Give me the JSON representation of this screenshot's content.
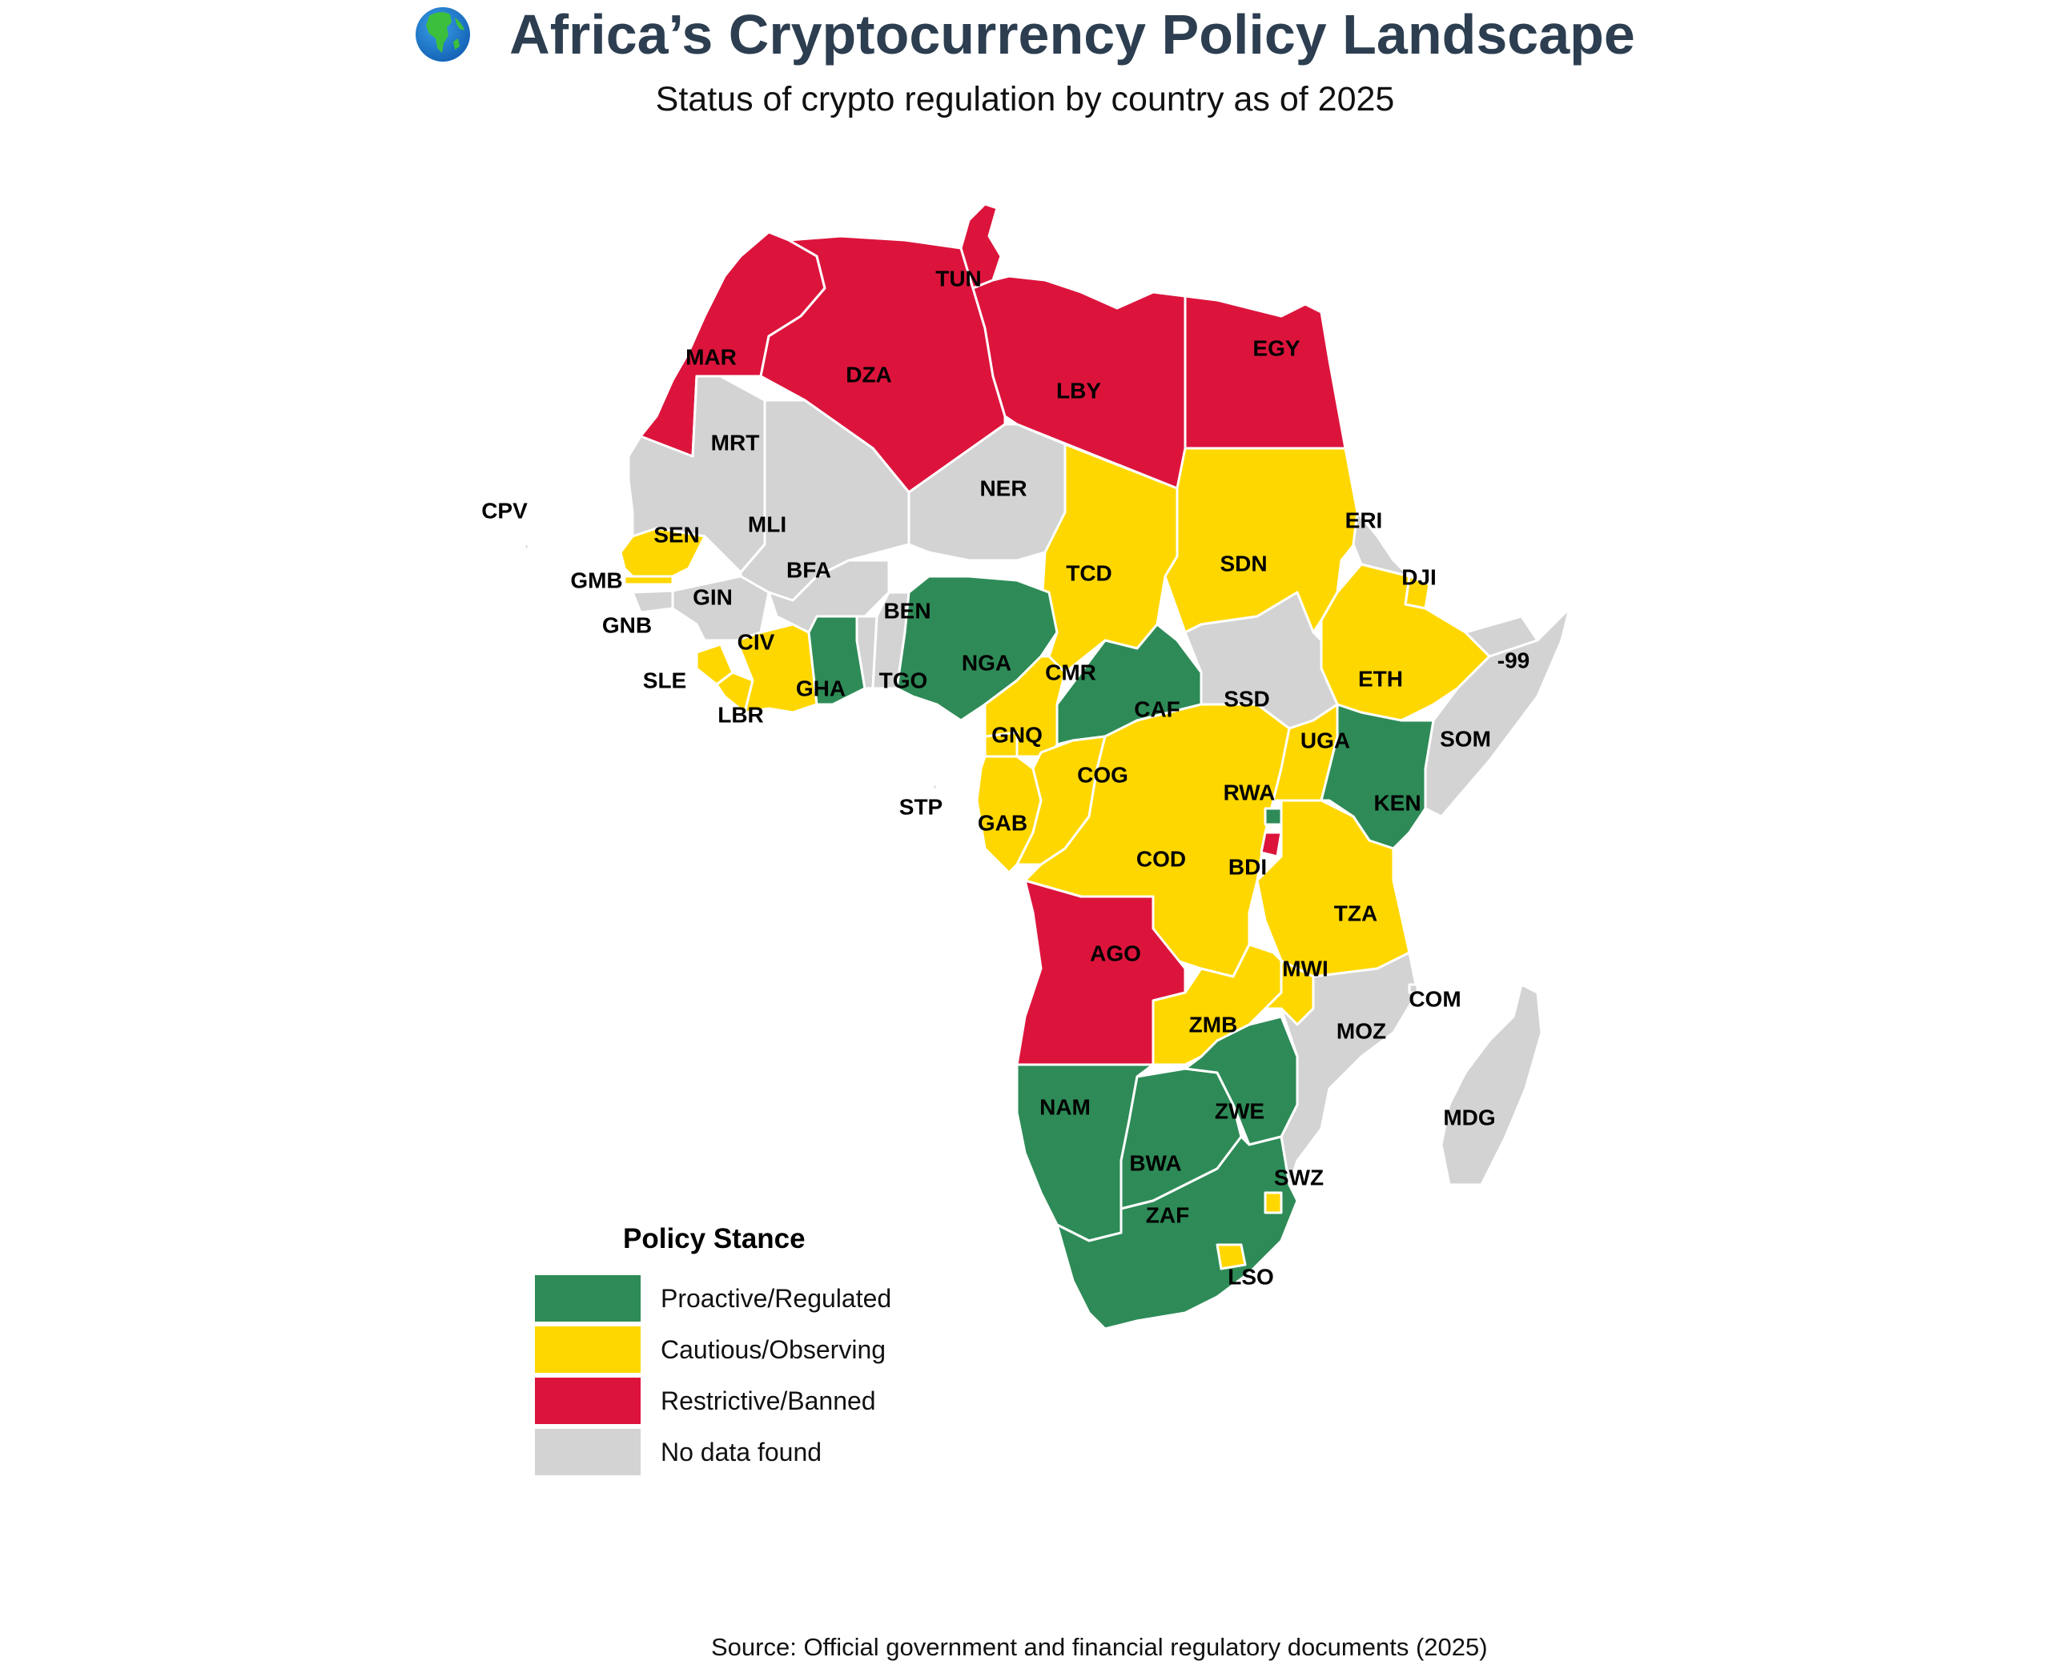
{
  "header": {
    "title": "Africa’s Cryptocurrency Policy Landscape",
    "subtitle": "Status of crypto regulation by country as of 2025",
    "icon": "globe-africa-icon"
  },
  "legend": {
    "title": "Policy Stance",
    "items": [
      {
        "key": "proactive",
        "label": "Proactive/Regulated",
        "color": "#2e8b57"
      },
      {
        "key": "cautious",
        "label": "Cautious/Observing",
        "color": "#ffd700"
      },
      {
        "key": "restrictive",
        "label": "Restrictive/Banned",
        "color": "#dc143c"
      },
      {
        "key": "nodata",
        "label": "No data found",
        "color": "#d3d3d3"
      }
    ]
  },
  "source": "Source: Official government and financial regulatory documents (2025)",
  "countries": [
    {
      "code": "MAR",
      "stance": "restrictive"
    },
    {
      "code": "DZA",
      "stance": "restrictive"
    },
    {
      "code": "TUN",
      "stance": "restrictive"
    },
    {
      "code": "LBY",
      "stance": "restrictive"
    },
    {
      "code": "EGY",
      "stance": "restrictive"
    },
    {
      "code": "MRT",
      "stance": "nodata"
    },
    {
      "code": "MLI",
      "stance": "nodata"
    },
    {
      "code": "NER",
      "stance": "nodata"
    },
    {
      "code": "TCD",
      "stance": "cautious"
    },
    {
      "code": "SDN",
      "stance": "cautious"
    },
    {
      "code": "ERI",
      "stance": "nodata"
    },
    {
      "code": "DJI",
      "stance": "cautious"
    },
    {
      "code": "ETH",
      "stance": "cautious"
    },
    {
      "code": "-99",
      "stance": "nodata"
    },
    {
      "code": "SOM",
      "stance": "nodata"
    },
    {
      "code": "CPV",
      "stance": "nodata"
    },
    {
      "code": "SEN",
      "stance": "cautious"
    },
    {
      "code": "GMB",
      "stance": "cautious"
    },
    {
      "code": "GNB",
      "stance": "nodata"
    },
    {
      "code": "GIN",
      "stance": "nodata"
    },
    {
      "code": "SLE",
      "stance": "cautious"
    },
    {
      "code": "LBR",
      "stance": "cautious"
    },
    {
      "code": "CIV",
      "stance": "cautious"
    },
    {
      "code": "BFA",
      "stance": "nodata"
    },
    {
      "code": "GHA",
      "stance": "proactive"
    },
    {
      "code": "TGO",
      "stance": "nodata"
    },
    {
      "code": "BEN",
      "stance": "nodata"
    },
    {
      "code": "NGA",
      "stance": "proactive"
    },
    {
      "code": "CMR",
      "stance": "cautious"
    },
    {
      "code": "CAF",
      "stance": "proactive"
    },
    {
      "code": "SSD",
      "stance": "nodata"
    },
    {
      "code": "GNQ",
      "stance": "cautious"
    },
    {
      "code": "STP",
      "stance": "nodata"
    },
    {
      "code": "GAB",
      "stance": "cautious"
    },
    {
      "code": "COG",
      "stance": "cautious"
    },
    {
      "code": "COD",
      "stance": "cautious"
    },
    {
      "code": "UGA",
      "stance": "cautious"
    },
    {
      "code": "KEN",
      "stance": "proactive"
    },
    {
      "code": "RWA",
      "stance": "proactive"
    },
    {
      "code": "BDI",
      "stance": "restrictive"
    },
    {
      "code": "TZA",
      "stance": "cautious"
    },
    {
      "code": "AGO",
      "stance": "restrictive"
    },
    {
      "code": "ZMB",
      "stance": "cautious"
    },
    {
      "code": "MWI",
      "stance": "cautious"
    },
    {
      "code": "MOZ",
      "stance": "nodata"
    },
    {
      "code": "COM",
      "stance": "nodata"
    },
    {
      "code": "MDG",
      "stance": "nodata"
    },
    {
      "code": "NAM",
      "stance": "proactive"
    },
    {
      "code": "BWA",
      "stance": "proactive"
    },
    {
      "code": "ZWE",
      "stance": "proactive"
    },
    {
      "code": "ZAF",
      "stance": "proactive"
    },
    {
      "code": "SWZ",
      "stance": "cautious"
    },
    {
      "code": "LSO",
      "stance": "cautious"
    }
  ]
}
